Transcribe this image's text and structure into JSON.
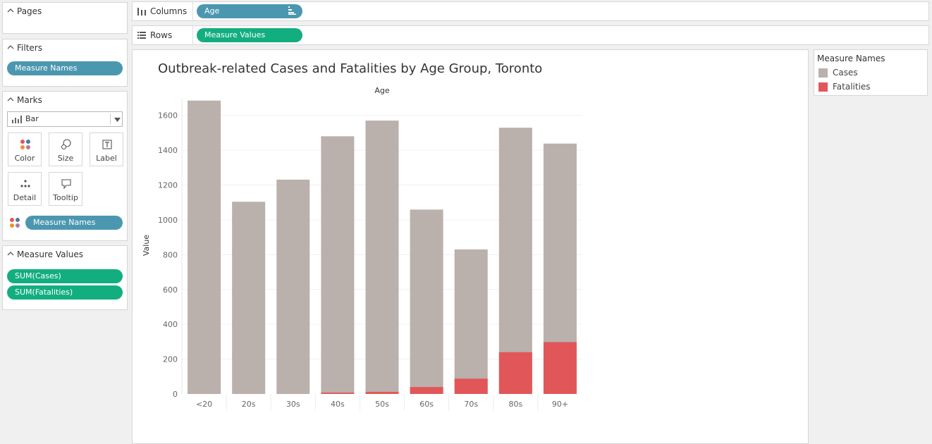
{
  "side": {
    "pages_title": "Pages",
    "filters_title": "Filters",
    "filters_pill": "Measure Names",
    "marks_title": "Marks",
    "mark_type": "Bar",
    "buttons": {
      "color": "Color",
      "size": "Size",
      "label": "Label",
      "detail": "Detail",
      "tooltip": "Tooltip"
    },
    "marks_color_pill": "Measure Names",
    "measure_values_title": "Measure Values",
    "measure_pills": [
      "SUM(Cases)",
      "SUM(Fatalities)"
    ]
  },
  "shelves": {
    "columns_label": "Columns",
    "columns_pill": "Age",
    "rows_label": "Rows",
    "rows_pill": "Measure Values"
  },
  "legend": {
    "title": "Measure Names",
    "items": [
      {
        "label": "Cases",
        "color": "#bab0ac"
      },
      {
        "label": "Fatalities",
        "color": "#e15759"
      }
    ]
  },
  "chart_data": {
    "type": "bar",
    "title": "Outbreak-related Cases and Fatalities by Age Group, Toronto",
    "xlabel": "Age",
    "ylabel": "Value",
    "categories": [
      "<20",
      "20s",
      "30s",
      "40s",
      "50s",
      "60s",
      "70s",
      "80s",
      "90+"
    ],
    "series": [
      {
        "name": "Cases",
        "color": "#bab0ac",
        "values": [
          1685,
          1104,
          1231,
          1480,
          1570,
          1059,
          830,
          1529,
          1438
        ]
      },
      {
        "name": "Fatalities",
        "color": "#e15759",
        "values": [
          0,
          0,
          0,
          8,
          12,
          40,
          88,
          240,
          298
        ]
      }
    ],
    "ylim": [
      0,
      1700
    ],
    "yticks": [
      0,
      200,
      400,
      600,
      800,
      1000,
      1200,
      1400,
      1600
    ],
    "bar_mode": "overlaid",
    "grid": true
  }
}
